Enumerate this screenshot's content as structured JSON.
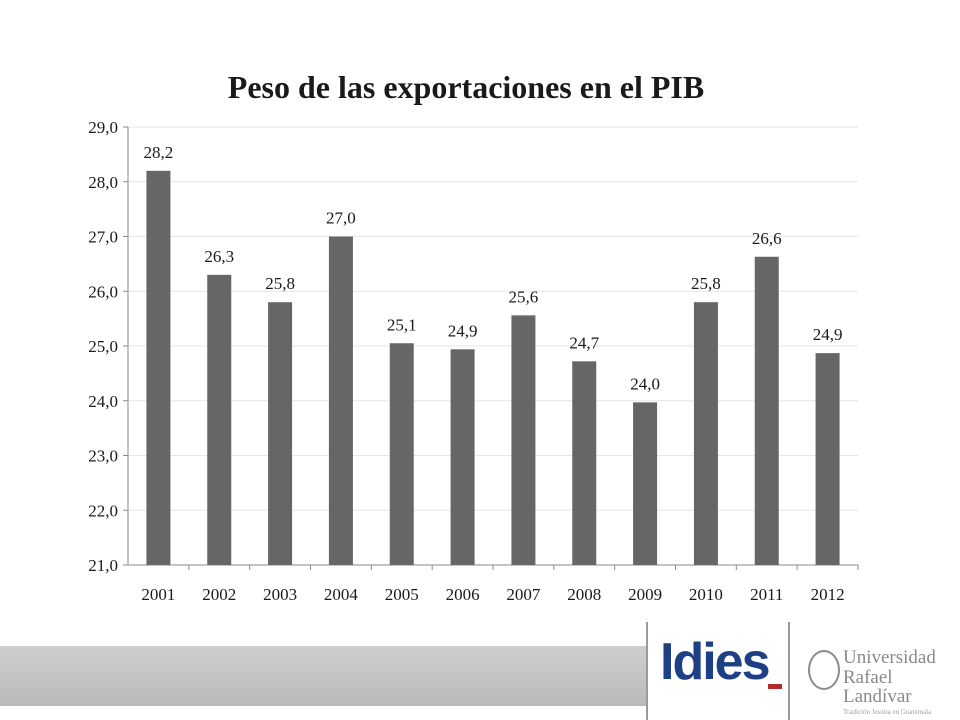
{
  "chart_data": {
    "type": "bar",
    "title": "Peso de las exportaciones  en el PIB",
    "categories": [
      "2001",
      "2002",
      "2003",
      "2004",
      "2005",
      "2006",
      "2007",
      "2008",
      "2009",
      "2010",
      "2011",
      "2012"
    ],
    "values": [
      28.2,
      26.3,
      25.8,
      27.0,
      25.05,
      24.94,
      25.56,
      24.72,
      23.97,
      25.8,
      26.63,
      24.87
    ],
    "data_labels": [
      "28,2",
      "26,3",
      "25,8",
      "27,0",
      "25,1",
      "24,9",
      "25,6",
      "24,7",
      "24,0",
      "25,8",
      "26,6",
      "24,9"
    ],
    "ylim": [
      21,
      29
    ],
    "y_ticks": [
      "21,0",
      "22,0",
      "23,0",
      "24,0",
      "25,0",
      "26,0",
      "27,0",
      "28,0",
      "29,0"
    ],
    "grid": true,
    "bar_color": "#666666"
  },
  "footer": {
    "logo_text": "Idies",
    "university_line1": "Universidad",
    "university_line2": "Rafael Landívar",
    "university_line3": "Tradición Jesuita en Guatemala"
  }
}
